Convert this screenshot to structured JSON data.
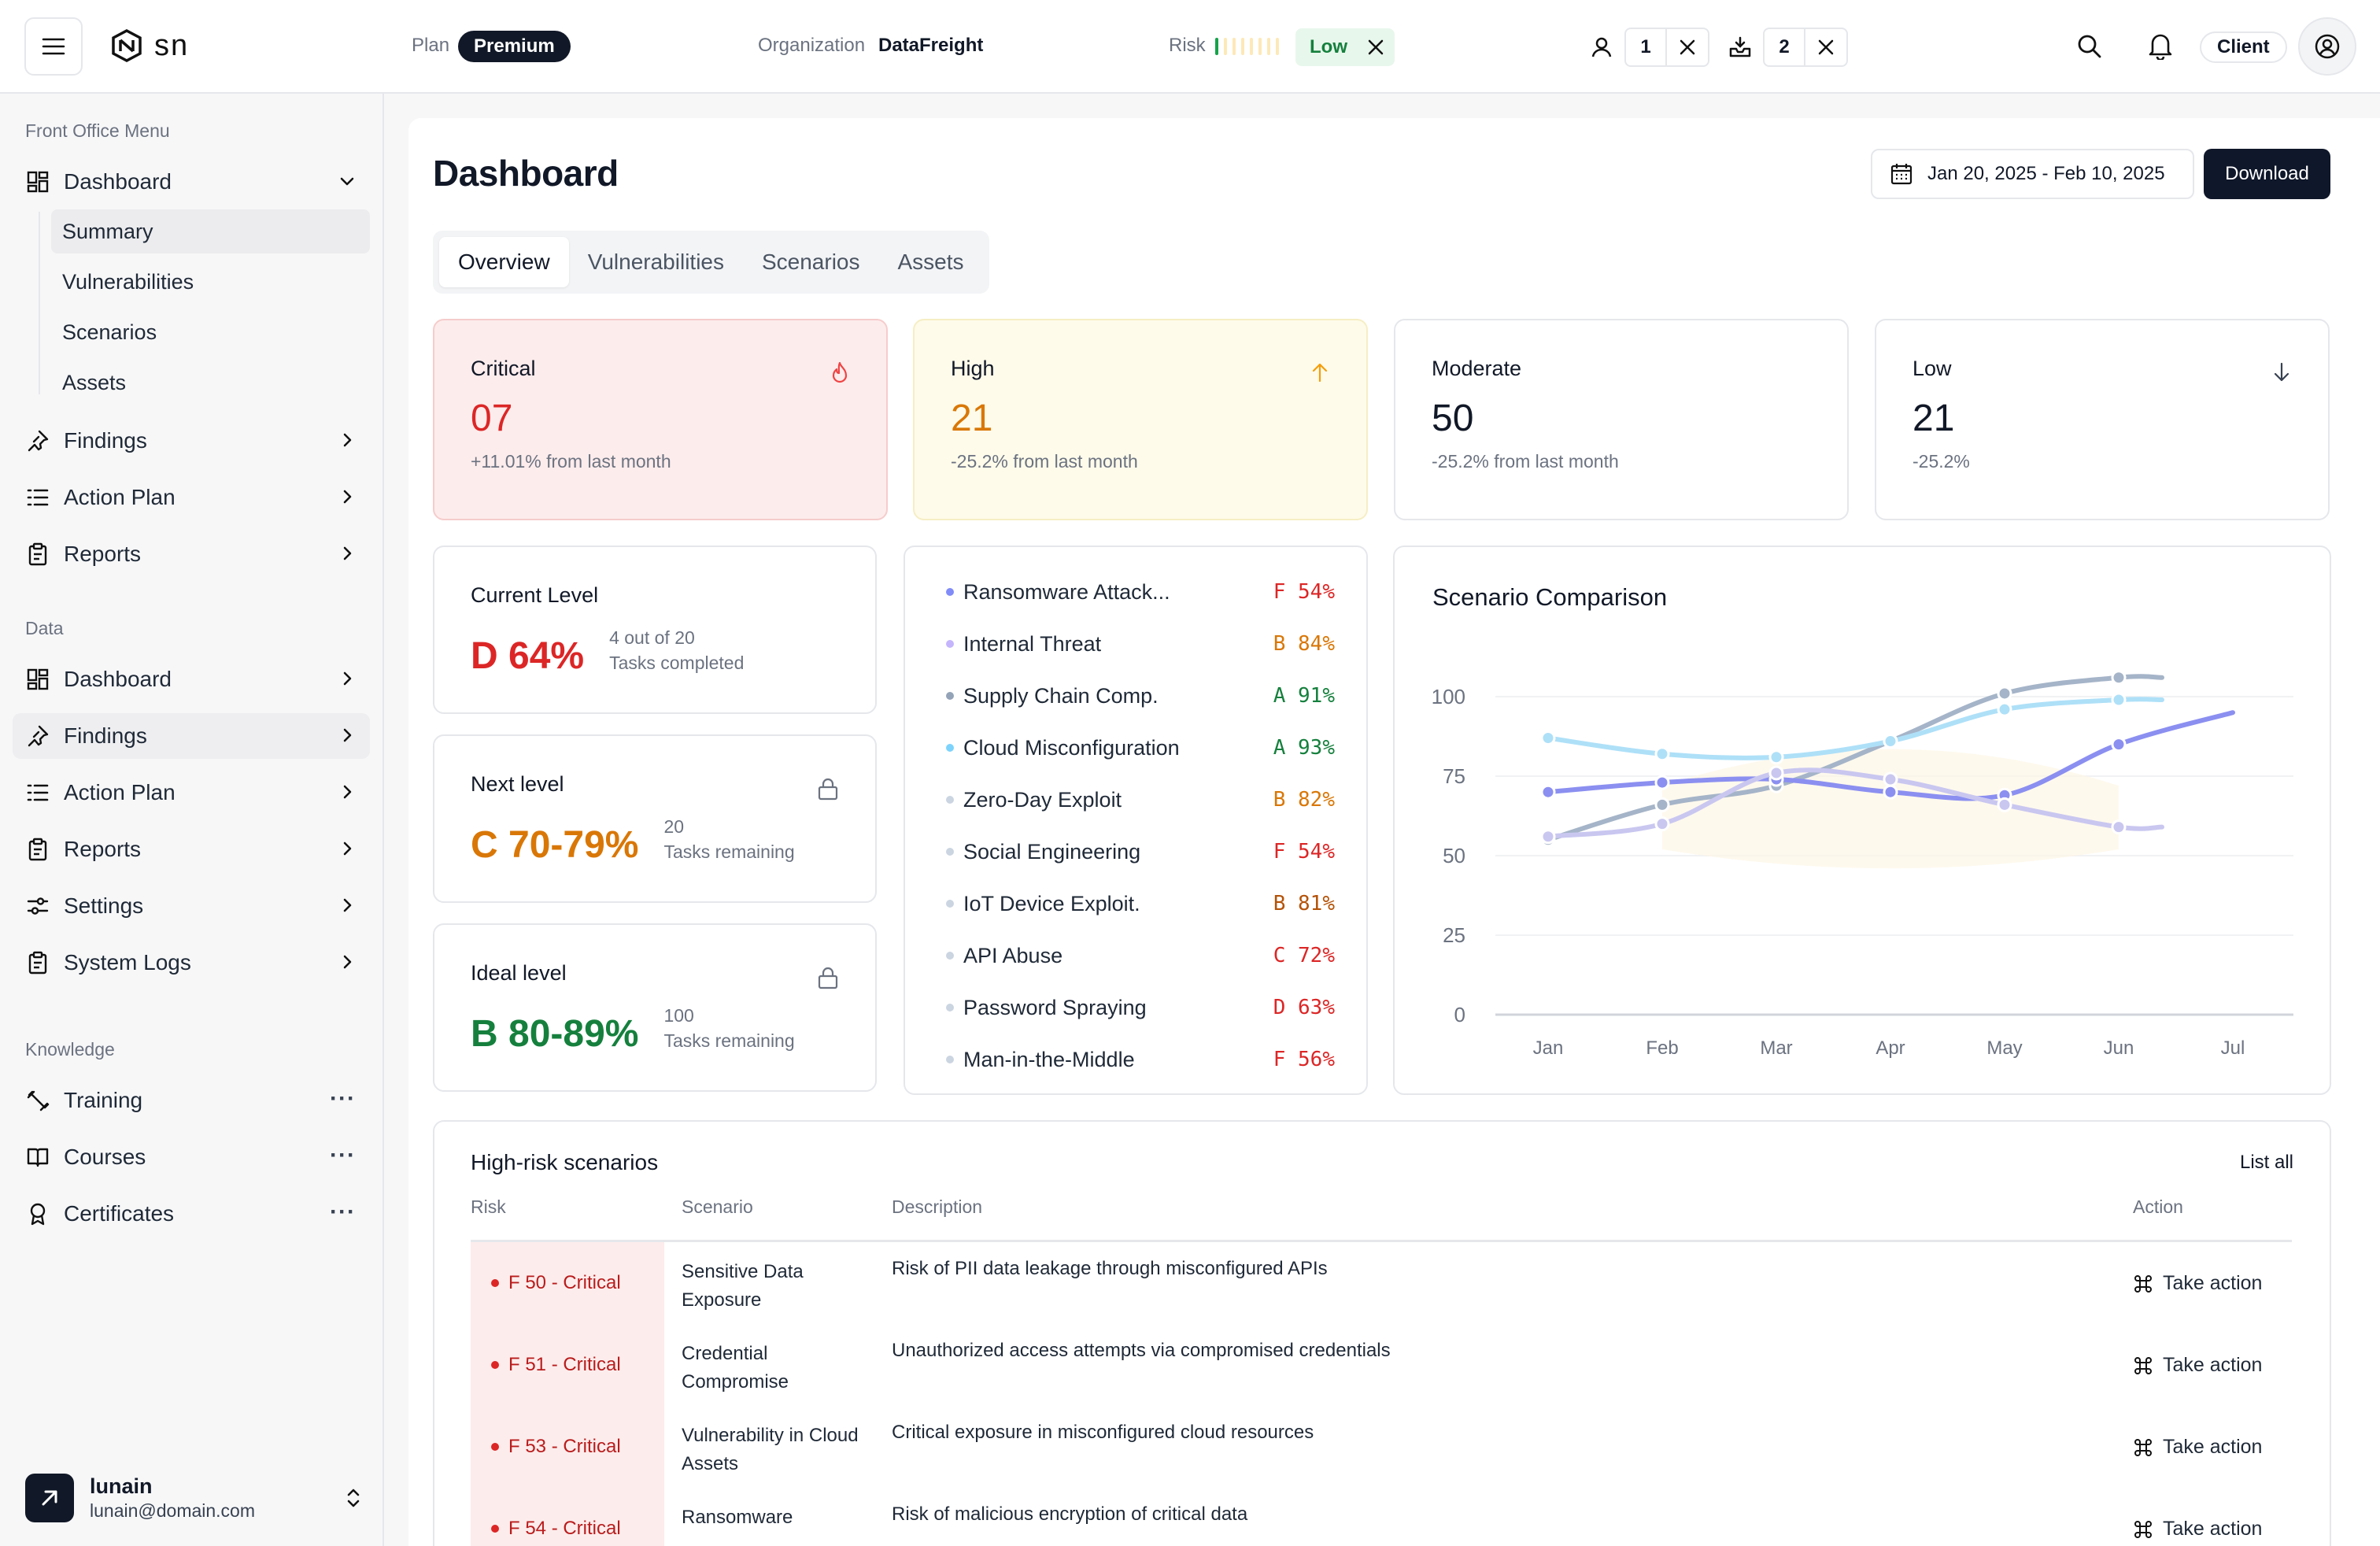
{
  "header": {
    "logo_text": "SN",
    "plan_label": "Plan",
    "plan_value": "Premium",
    "org_label": "Organization",
    "org_value": "DataFreight",
    "risk_label": "Risk",
    "risk_value": "Low",
    "risk_level": 1,
    "risk_segments": 8,
    "user_count": "1",
    "device_count": "2",
    "client_label": "Client"
  },
  "sidebar": {
    "front_office_title": "Front Office Menu",
    "front_office": [
      {
        "label": "Dashboard",
        "icon": "grid-icon",
        "expanded": true
      },
      {
        "label": "Findings",
        "icon": "pin-icon"
      },
      {
        "label": "Action Plan",
        "icon": "list-icon"
      },
      {
        "label": "Reports",
        "icon": "clipboard-icon"
      }
    ],
    "dashboard_children": [
      "Summary",
      "Vulnerabilities",
      "Scenarios",
      "Assets"
    ],
    "data_title": "Data",
    "data": [
      {
        "label": "Dashboard",
        "icon": "grid-icon"
      },
      {
        "label": "Findings",
        "icon": "pin-icon"
      },
      {
        "label": "Action Plan",
        "icon": "list-icon"
      },
      {
        "label": "Reports",
        "icon": "clipboard-icon"
      },
      {
        "label": "Settings",
        "icon": "sliders-icon"
      },
      {
        "label": "System Logs",
        "icon": "clipboard-icon"
      }
    ],
    "knowledge_title": "Knowledge",
    "knowledge": [
      {
        "label": "Training",
        "icon": "dumbbell-icon"
      },
      {
        "label": "Courses",
        "icon": "book-icon"
      },
      {
        "label": "Certificates",
        "icon": "award-icon"
      }
    ],
    "user": {
      "name": "lunain",
      "email": "lunain@domain.com"
    }
  },
  "page": {
    "title": "Dashboard",
    "date_range": "Jan 20, 2025 - Feb 10, 2025",
    "download_label": "Download",
    "tabs": [
      "Overview",
      "Vulnerabilities",
      "Scenarios",
      "Assets"
    ]
  },
  "stats": {
    "critical": {
      "label": "Critical",
      "value": "07",
      "sub": "+11.01% from last month"
    },
    "high": {
      "label": "High",
      "value": "21",
      "sub": "-25.2% from last month"
    },
    "moderate": {
      "label": "Moderate",
      "value": "50",
      "sub": "-25.2% from last month"
    },
    "low": {
      "label": "Low",
      "value": "21",
      "sub": "-25.2%"
    }
  },
  "levels": {
    "current": {
      "label": "Current Level",
      "value": "D 64%",
      "meta1": "4 out of 20",
      "meta2": "Tasks completed",
      "color": "#dc2626"
    },
    "next": {
      "label": "Next level",
      "value": "C 70-79%",
      "meta1": "20",
      "meta2": "Tasks remaining",
      "color": "#d97706"
    },
    "ideal": {
      "label": "Ideal level",
      "value": "B 80-89%",
      "meta1": "100",
      "meta2": "Tasks remaining",
      "color": "#15803d"
    }
  },
  "scenarios": [
    {
      "name": "Ransomware Attack...",
      "grade": "F",
      "pct": "54%",
      "dot": "#818cf8",
      "color": "#dc2626"
    },
    {
      "name": "Internal Threat",
      "grade": "B",
      "pct": "84%",
      "dot": "#c4b5fd",
      "color": "#d97706"
    },
    {
      "name": "Supply Chain Comp.",
      "grade": "A",
      "pct": "91%",
      "dot": "#94a3b8",
      "color": "#15803d"
    },
    {
      "name": "Cloud Misconfiguration",
      "grade": "A",
      "pct": "93%",
      "dot": "#7dd3fc",
      "color": "#15803d"
    },
    {
      "name": "Zero-Day Exploit",
      "grade": "B",
      "pct": "82%",
      "dot": "#cbd5e1",
      "color": "#d97706"
    },
    {
      "name": "Social Engineering",
      "grade": "F",
      "pct": "54%",
      "dot": "#cbd5e1",
      "color": "#dc2626"
    },
    {
      "name": "IoT Device Exploit.",
      "grade": "B",
      "pct": "81%",
      "dot": "#cbd5e1",
      "color": "#b45309"
    },
    {
      "name": "API Abuse",
      "grade": "C",
      "pct": "72%",
      "dot": "#cbd5e1",
      "color": "#dc2626"
    },
    {
      "name": "Password Spraying",
      "grade": "D",
      "pct": "63%",
      "dot": "#cbd5e1",
      "color": "#dc2626"
    },
    {
      "name": "Man-in-the-Middle",
      "grade": "F",
      "pct": "56%",
      "dot": "#cbd5e1",
      "color": "#dc2626"
    }
  ],
  "chart_data": {
    "type": "line",
    "title": "Scenario Comparison",
    "categories": [
      "Jan",
      "Feb",
      "Mar",
      "Apr",
      "May",
      "Jun",
      "Jul"
    ],
    "ylim": [
      0,
      100
    ],
    "yticks": [
      0,
      25,
      50,
      75,
      100
    ],
    "grid": true,
    "series": [
      {
        "color": "#a5b4c8",
        "values": [
          55,
          66,
          72,
          86,
          101,
          106,
          null
        ]
      },
      {
        "color": "#aee0f8",
        "values": [
          87,
          82,
          81,
          86,
          96,
          99,
          null
        ]
      },
      {
        "color": "#8b8ff0",
        "values": [
          70,
          73,
          74,
          70,
          69,
          85,
          95
        ]
      },
      {
        "color": "#c9c7f0",
        "values": [
          56,
          60,
          76,
          74,
          66,
          59,
          null
        ]
      }
    ]
  },
  "table": {
    "title": "High-risk scenarios",
    "list_all": "List all",
    "headers": {
      "risk": "Risk",
      "scenario": "Scenario",
      "description": "Description",
      "action": "Action"
    },
    "rows": [
      {
        "risk": "F 50 - Critical",
        "scenario": "Sensitive Data Exposure",
        "description": "Risk of PII data leakage through misconfigured APIs",
        "action": "Take action"
      },
      {
        "risk": "F 51 - Critical",
        "scenario": "Credential Compromise",
        "description": "Unauthorized access attempts via compromised credentials",
        "action": "Take action"
      },
      {
        "risk": "F 53 - Critical",
        "scenario": "Vulnerability in Cloud Assets",
        "description": "Critical exposure in misconfigured cloud resources",
        "action": "Take action"
      },
      {
        "risk": "F 54 - Critical",
        "scenario": "Ransomware",
        "description": "Risk of malicious encryption of critical data",
        "action": "Take action"
      }
    ]
  }
}
